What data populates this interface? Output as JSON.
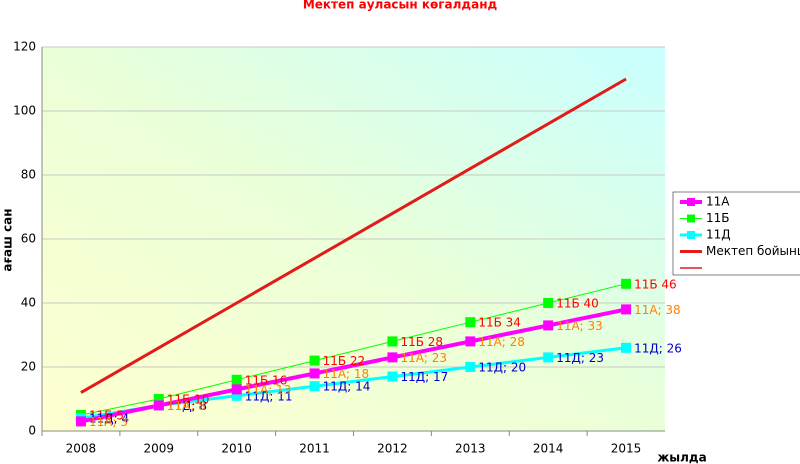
{
  "chart_data": {
    "type": "line",
    "title": "Мектеп ауласын көгалданд",
    "y_label": "ағаш сан",
    "x_label": "жылда",
    "categories": [
      "2008",
      "2009",
      "2010",
      "2011",
      "2012",
      "2013",
      "2014",
      "2015"
    ],
    "ylim": [
      0,
      120
    ],
    "yticks": [
      0,
      20,
      40,
      60,
      80,
      100,
      120
    ],
    "grid": true,
    "legend": "right",
    "series": [
      {
        "name": "11А",
        "color": "#ff00ff",
        "line_width": 4,
        "marker": "square",
        "label_color": "#ff8000",
        "values": [
          3,
          8,
          13,
          18,
          23,
          28,
          33,
          38
        ],
        "value_labels": [
          "11А; 3",
          "11А; 8",
          "11А; 13",
          "11А; 18",
          "11А; 23",
          "11А; 28",
          "11А; 33",
          "11А; 38"
        ]
      },
      {
        "name": "11Б",
        "color": "#00ff00",
        "line_width": 1,
        "marker": "square",
        "label_color": "#ff0000",
        "values": [
          5,
          10,
          16,
          22,
          28,
          34,
          40,
          46
        ],
        "value_labels": [
          "11Б 5",
          "11Б 10",
          "11Б 16",
          "11Б 22",
          "11Б 28",
          "11Б 34",
          "11Б 40",
          "11Б 46"
        ]
      },
      {
        "name": "11Д",
        "color": "#00ffff",
        "line_width": 3,
        "marker": "square",
        "label_color": "#0000cc",
        "values": [
          4,
          8,
          11,
          14,
          17,
          20,
          23,
          26
        ],
        "value_labels": [
          "11Д; 4",
          "11Д; 8",
          "11Д; 11",
          "11Д; 14",
          "11Д; 17",
          "11Д; 20",
          "11Д; 23",
          "11Д; 26"
        ]
      },
      {
        "name": "Мектеп бойынша",
        "color": "#e31a1a",
        "line_width": 3,
        "values": [
          12,
          26,
          40,
          54,
          68,
          82,
          96,
          110
        ]
      }
    ]
  }
}
